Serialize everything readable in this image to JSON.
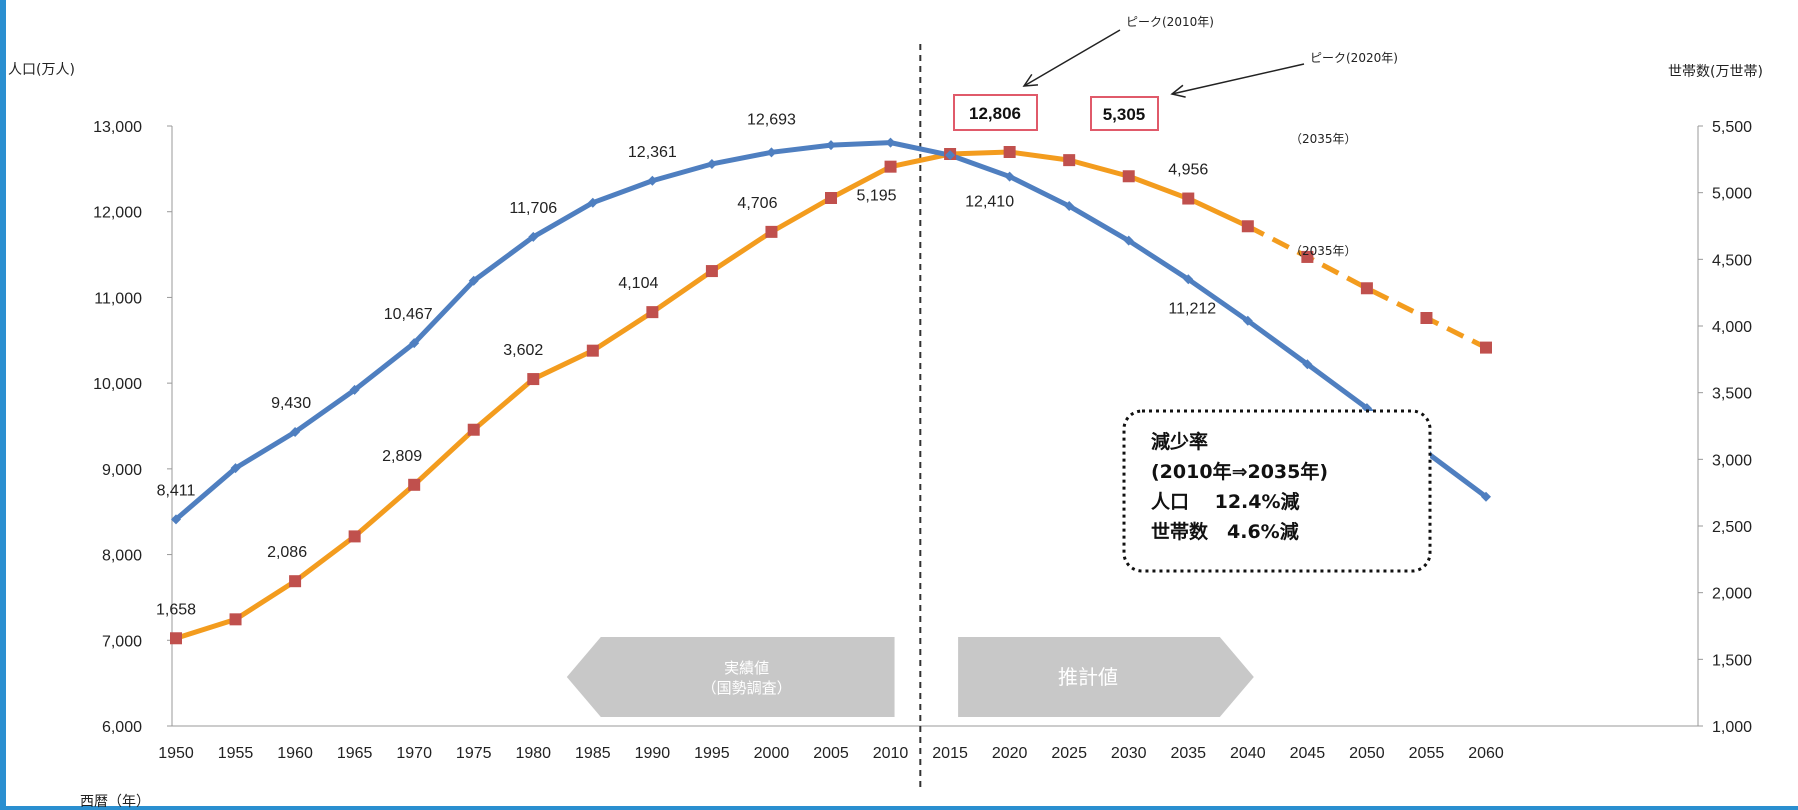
{
  "colors": {
    "population": "#4f7fc0",
    "households": "#f39c1e",
    "household_marker": "#c0504d",
    "peak_box": "#e05a6a",
    "banner": "#c8c8c8",
    "left_strip": "#2a8fd0"
  },
  "chart_data": {
    "type": "line",
    "x": [
      1950,
      1955,
      1960,
      1965,
      1970,
      1975,
      1980,
      1985,
      1990,
      1995,
      2000,
      2005,
      2010,
      2015,
      2020,
      2025,
      2030,
      2035,
      2040,
      2045,
      2050,
      2055,
      2060
    ],
    "x_tick_labels": [
      "1950",
      "1955",
      "1960",
      "1965",
      "1970",
      "1975",
      "1980",
      "1985",
      "1990",
      "1995",
      "2000",
      "2005",
      "2010",
      "2015",
      "2020",
      "2025",
      "2030",
      "2035",
      "2040",
      "2045",
      "2050",
      "2055",
      "2060"
    ],
    "xlabel": "西暦（年）",
    "ylabel_left": "人口(万人)",
    "ylabel_right": "世帯数(万世帯)",
    "ylim_left": [
      6000,
      13000
    ],
    "ylim_right": [
      1000,
      5500
    ],
    "y_ticks_left": [
      "6,000",
      "7,000",
      "8,000",
      "9,000",
      "10,000",
      "11,000",
      "12,000",
      "13,000"
    ],
    "y_ticks_right": [
      "1,000",
      "1,500",
      "2,000",
      "2,500",
      "3,000",
      "3,500",
      "4,000",
      "4,500",
      "5,000",
      "5,500"
    ],
    "series": [
      {
        "axis": "left",
        "values": [
          8411,
          9008,
          9430,
          9921,
          10467,
          11194,
          11706,
          12105,
          12361,
          12557,
          12693,
          12777,
          12806,
          12660,
          12410,
          12066,
          11662,
          11212,
          10728,
          10221,
          9708,
          9193,
          8674
        ]
      },
      {
        "axis": "right",
        "dashed_from": 2040,
        "values": [
          1658,
          1800,
          2086,
          2422,
          2809,
          3222,
          3602,
          3815,
          4104,
          4412,
          4706,
          4960,
          5195,
          5290,
          5305,
          5244,
          5123,
          4956,
          4748,
          4518,
          4283,
          4060,
          3838
        ]
      }
    ],
    "data_labels": [
      {
        "text": "8,411",
        "x": 1950,
        "axis": "left",
        "value": 8411
      },
      {
        "text": "9,430",
        "x": 1960,
        "axis": "left",
        "value": 9430
      },
      {
        "text": "10,467",
        "x": 1970,
        "axis": "left",
        "value": 10467
      },
      {
        "text": "11,706",
        "x": 1980,
        "axis": "left",
        "value": 11706
      },
      {
        "text": "12,361",
        "x": 1990,
        "axis": "left",
        "value": 12361
      },
      {
        "text": "12,693",
        "x": 2000,
        "axis": "left",
        "value": 12693
      },
      {
        "text": "12,410",
        "x": 2020,
        "axis": "left",
        "value": 12410
      },
      {
        "text": "11,212",
        "x": 2035,
        "axis": "left",
        "value": 11212
      },
      {
        "text": "1,658",
        "x": 1950,
        "axis": "right",
        "value": 1658
      },
      {
        "text": "2,086",
        "x": 1960,
        "axis": "right",
        "value": 2086
      },
      {
        "text": "2,809",
        "x": 1970,
        "axis": "right",
        "value": 2809
      },
      {
        "text": "3,602",
        "x": 1980,
        "axis": "right",
        "value": 3602
      },
      {
        "text": "4,104",
        "x": 1990,
        "axis": "right",
        "value": 4104
      },
      {
        "text": "4,706",
        "x": 2000,
        "axis": "right",
        "value": 4706
      },
      {
        "text": "5,195",
        "x": 2010,
        "axis": "right",
        "value": 5195
      },
      {
        "text": "4,956",
        "x": 2035,
        "axis": "right",
        "value": 4956
      }
    ],
    "annotations": {
      "peak_2010_label": "ピーク(2010年)",
      "peak_2020_label": "ピーク(2020年)",
      "peak_population_value": "12,806",
      "peak_households_value": "5,305",
      "year_2035_households": "（2035年）",
      "year_2035_population": "（2035年）",
      "actual_banner": [
        "実績値",
        "（国勢調査）"
      ],
      "estimate_banner": "推計値",
      "divider_year": 2012.5
    },
    "note": {
      "title": "減少率",
      "period": "(2010年⇒2035年)",
      "population": "人口　 12.4%減",
      "households": "世帯数　4.6%減"
    }
  }
}
